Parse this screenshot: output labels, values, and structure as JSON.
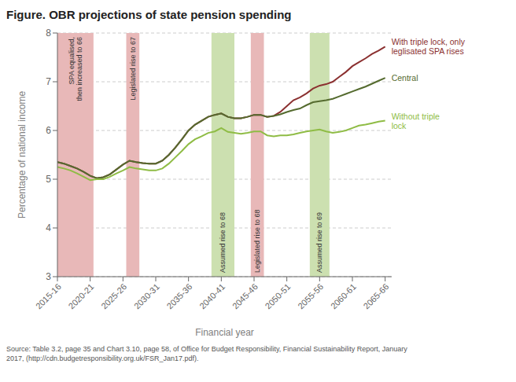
{
  "chart_data": {
    "type": "line",
    "title": "Figure. OBR projections of state pension spending",
    "xlabel": "Financial year",
    "ylabel": "Percentage of national income",
    "source": [
      "Source: Table 3.2, page 35 and Chart 3.10, page 58, of Office for Budget Responsibility, Financial Sustainability Report, January",
      "2017, (http://cdn.budgetresponsibility.org.uk/FSR_Jan17.pdf)."
    ],
    "x": [
      2015,
      2016,
      2017,
      2018,
      2019,
      2020,
      2021,
      2022,
      2023,
      2024,
      2025,
      2026,
      2027,
      2028,
      2029,
      2030,
      2031,
      2032,
      2033,
      2034,
      2035,
      2036,
      2037,
      2038,
      2039,
      2040,
      2041,
      2042,
      2043,
      2044,
      2045,
      2046,
      2047,
      2048,
      2049,
      2050,
      2051,
      2052,
      2053,
      2054,
      2055,
      2056,
      2057,
      2058,
      2059,
      2060,
      2061,
      2062,
      2063,
      2064,
      2065
    ],
    "series": [
      {
        "name": "With triple lock, only\nleglisated SPA rises",
        "color": "#8b3030",
        "values": [
          5.35,
          5.32,
          5.27,
          5.22,
          5.15,
          5.07,
          5.02,
          5.04,
          5.1,
          5.2,
          5.3,
          5.38,
          5.35,
          5.33,
          5.32,
          5.32,
          5.38,
          5.5,
          5.65,
          5.82,
          6.0,
          6.12,
          6.2,
          6.28,
          6.32,
          6.35,
          6.28,
          6.25,
          6.25,
          6.28,
          6.32,
          6.32,
          6.28,
          6.3,
          6.38,
          6.5,
          6.62,
          6.68,
          6.76,
          6.86,
          6.92,
          6.95,
          7.0,
          7.1,
          7.2,
          7.32,
          7.4,
          7.48,
          7.57,
          7.64,
          7.72
        ]
      },
      {
        "name": "Central",
        "color": "#556b2f",
        "values": [
          5.35,
          5.32,
          5.27,
          5.22,
          5.15,
          5.07,
          5.02,
          5.04,
          5.1,
          5.2,
          5.3,
          5.38,
          5.35,
          5.33,
          5.32,
          5.32,
          5.38,
          5.5,
          5.65,
          5.82,
          6.0,
          6.12,
          6.2,
          6.28,
          6.32,
          6.35,
          6.28,
          6.25,
          6.25,
          6.28,
          6.32,
          6.32,
          6.28,
          6.3,
          6.33,
          6.38,
          6.42,
          6.45,
          6.52,
          6.58,
          6.6,
          6.62,
          6.65,
          6.7,
          6.75,
          6.8,
          6.85,
          6.9,
          6.96,
          7.02,
          7.08
        ]
      },
      {
        "name": "Without triple\nlock",
        "color": "#8fbc45",
        "values": [
          5.25,
          5.22,
          5.18,
          5.12,
          5.05,
          4.98,
          5.0,
          5.0,
          5.05,
          5.12,
          5.18,
          5.25,
          5.22,
          5.2,
          5.18,
          5.18,
          5.22,
          5.32,
          5.45,
          5.58,
          5.72,
          5.82,
          5.88,
          5.95,
          5.98,
          6.05,
          5.97,
          5.95,
          5.93,
          5.95,
          5.98,
          5.98,
          5.9,
          5.88,
          5.9,
          5.9,
          5.92,
          5.95,
          5.98,
          6.0,
          6.02,
          5.98,
          5.95,
          5.97,
          6.0,
          6.05,
          6.1,
          6.12,
          6.15,
          6.18,
          6.2
        ]
      }
    ],
    "bands": [
      {
        "x1": 2015,
        "x2": 2020.5,
        "color": "#e8b8b8",
        "text": "SPA equalised,\nthen increased to 66"
      },
      {
        "x1": 2025.5,
        "x2": 2027.5,
        "color": "#e8b8b8",
        "text": "Legislated rise to 67"
      },
      {
        "x1": 2044.5,
        "x2": 2046.5,
        "color": "#e8b8b8",
        "text": "Legislated rise to 68"
      },
      {
        "x1": 2038.5,
        "x2": 2042.0,
        "color": "#cce0b0",
        "text": "Assumed rise to 68"
      },
      {
        "x1": 2053.5,
        "x2": 2056.5,
        "color": "#cce0b0",
        "text": "Assumed rise to 69"
      }
    ],
    "xlim": [
      2015,
      2066
    ],
    "xticks": [
      {
        "value": 2015,
        "label": "2015-16"
      },
      {
        "value": 2020,
        "label": "2020-21"
      },
      {
        "value": 2025,
        "label": "2025-26"
      },
      {
        "value": 2030,
        "label": "2030-31"
      },
      {
        "value": 2035,
        "label": "2035-36"
      },
      {
        "value": 2040,
        "label": "2040-41"
      },
      {
        "value": 2045,
        "label": "2045-46"
      },
      {
        "value": 2050,
        "label": "2050-51"
      },
      {
        "value": 2055,
        "label": "2055-56"
      },
      {
        "value": 2060,
        "label": "2060-61"
      },
      {
        "value": 2065,
        "label": "2065-66"
      }
    ],
    "ylim": [
      3,
      8
    ],
    "yticks": [
      3,
      4,
      5,
      6,
      7,
      8
    ],
    "grid": true
  }
}
